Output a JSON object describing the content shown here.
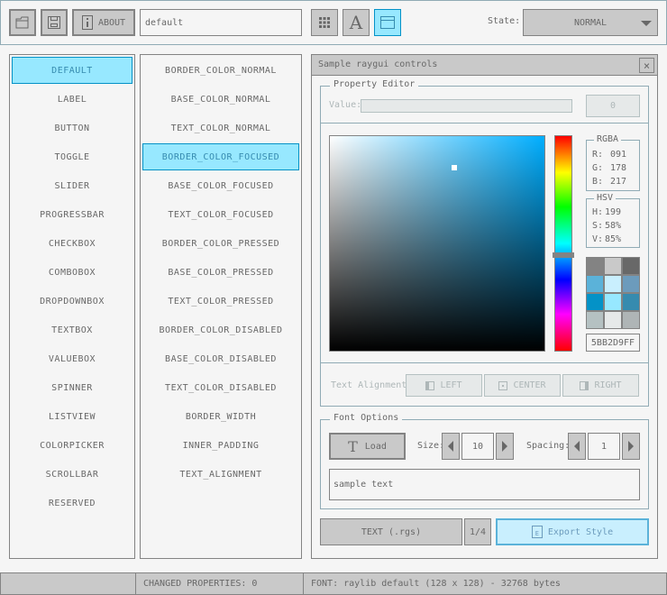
{
  "toolbar": {
    "about_label": "ABOUT",
    "style_name": "default",
    "state_label": "State:",
    "state_value": "NORMAL"
  },
  "controls": [
    "DEFAULT",
    "LABEL",
    "BUTTON",
    "TOGGLE",
    "SLIDER",
    "PROGRESSBAR",
    "CHECKBOX",
    "COMBOBOX",
    "DROPDOWNBOX",
    "TEXTBOX",
    "VALUEBOX",
    "SPINNER",
    "LISTVIEW",
    "COLORPICKER",
    "SCROLLBAR",
    "RESERVED"
  ],
  "properties": [
    "BORDER_COLOR_NORMAL",
    "BASE_COLOR_NORMAL",
    "TEXT_COLOR_NORMAL",
    "BORDER_COLOR_FOCUSED",
    "BASE_COLOR_FOCUSED",
    "TEXT_COLOR_FOCUSED",
    "BORDER_COLOR_PRESSED",
    "BASE_COLOR_PRESSED",
    "TEXT_COLOR_PRESSED",
    "BORDER_COLOR_DISABLED",
    "BASE_COLOR_DISABLED",
    "TEXT_COLOR_DISABLED",
    "BORDER_WIDTH",
    "INNER_PADDING",
    "TEXT_ALIGNMENT"
  ],
  "window": {
    "title": "Sample raygui controls",
    "close": "×"
  },
  "editor": {
    "title": "Property Editor",
    "value_label": "Value:",
    "value": "0",
    "rgba_title": "RGBA",
    "r_label": "R:",
    "r": "091",
    "g_label": "G:",
    "g": "178",
    "b_label": "B:",
    "b": "217",
    "hsv_title": "HSV",
    "h_label": "H:",
    "h": "199",
    "s_label": "S:",
    "s": "58%",
    "v_label": "V:",
    "v": "85%",
    "hex": "5BB2D9FF",
    "hue": 199,
    "saturation": 0.58,
    "brightness": 0.85,
    "palette": [
      "#838383",
      "#c9c9c9",
      "#686868",
      "#5bb2d9",
      "#c9effe",
      "#6c9bbc",
      "#0492c7",
      "#97e8ff",
      "#368baf",
      "#b5c1c2",
      "#e6e9e9",
      "#afb5b6"
    ],
    "align_label": "Text Alignment:",
    "left": "LEFT",
    "center": "CENTER",
    "right": "RIGHT"
  },
  "font": {
    "title": "Font Options",
    "load": "Load",
    "size_label": "Size:",
    "size": "10",
    "spacing_label": "Spacing:",
    "spacing": "1",
    "sample": "sample text"
  },
  "bottom": {
    "format": "TEXT (.rgs)",
    "page": "1/4",
    "export": "Export Style"
  },
  "status": {
    "changed": "CHANGED PROPERTIES: 0",
    "font": "FONT: raylib default (128 x 128) - 32768 bytes"
  }
}
